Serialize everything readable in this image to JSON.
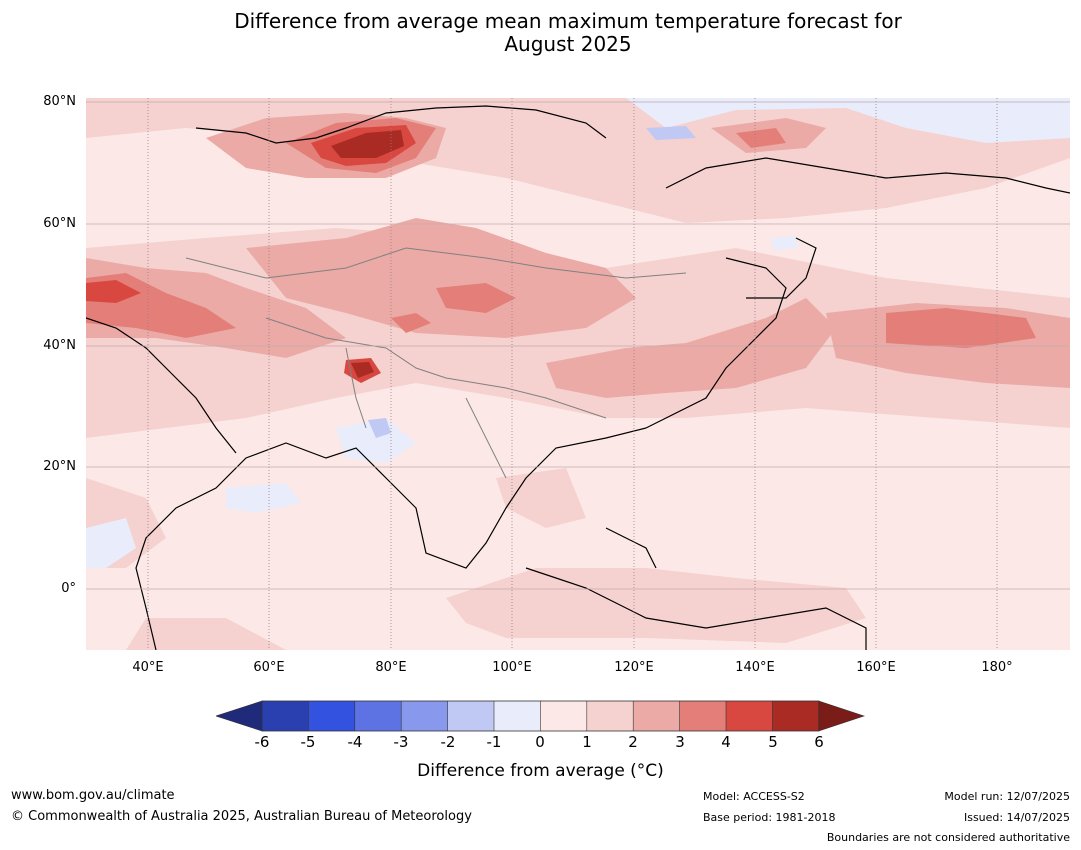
{
  "title": {
    "line1": "Difference from average mean maximum temperature forecast for",
    "line2": "August 2025"
  },
  "map": {
    "lat_labels": [
      "80°N",
      "60°N",
      "40°N",
      "20°N",
      "0°"
    ],
    "lon_labels": [
      "40°E",
      "60°E",
      "80°E",
      "100°E",
      "120°E",
      "140°E",
      "160°E",
      "180°"
    ],
    "palette": {
      "-6": "#1f2a7a",
      "-5": "#2a3fb0",
      "-4": "#3352e0",
      "-3": "#5d73e4",
      "-2": "#8898ec",
      "-1": "#c0c8f4",
      "0": "#e8ecfb",
      "1": "#fce9e7",
      "2": "#f5d2cf",
      "3": "#ebaaa6",
      "4": "#e47e78",
      "5": "#d84840",
      "6": "#aa2a24",
      "7": "#7a1c18"
    }
  },
  "colorbar": {
    "ticks": [
      "-6",
      "-5",
      "-4",
      "-3",
      "-2",
      "-1",
      "0",
      "1",
      "2",
      "3",
      "4",
      "5",
      "6"
    ],
    "label": "Difference from average (°C)"
  },
  "footer": {
    "url": "www.bom.gov.au/climate",
    "copyright": "© Commonwealth of Australia 2025, Australian Bureau of Meteorology",
    "model": "Model: ACCESS-S2",
    "base_period": "Base period: 1981-2018",
    "model_run": "Model run: 12/07/2025",
    "issued": "Issued: 14/07/2025",
    "disclaimer": "Boundaries are not considered authoritative"
  }
}
